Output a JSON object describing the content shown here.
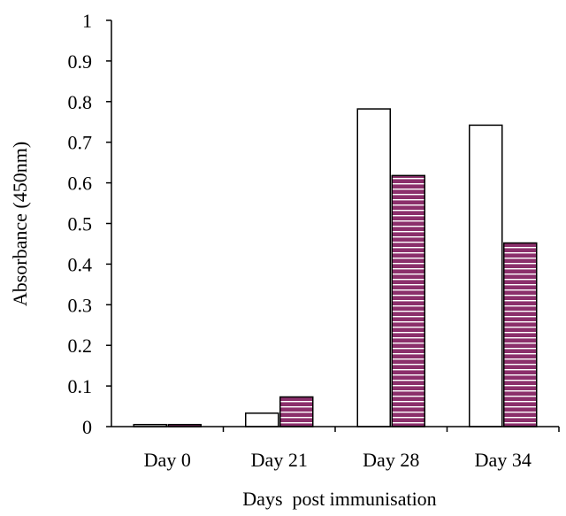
{
  "chart_data": {
    "type": "bar",
    "title": "",
    "xlabel": "Days  post immunisation",
    "ylabel": "Absorbance (450nm)",
    "categories": [
      "Day 0",
      "Day 21",
      "Day 28",
      "Day 34"
    ],
    "ylim": [
      0,
      1
    ],
    "yticks": [
      "0",
      "0.1",
      "0.2",
      "0.3",
      "0.4",
      "0.5",
      "0.6",
      "0.7",
      "0.8",
      "0.9",
      "1"
    ],
    "grid": false,
    "legend": "none",
    "series": [
      {
        "values": [
          0.005,
          0.033,
          0.782,
          0.742
        ],
        "fill": "#ffffff",
        "pattern": "none"
      },
      {
        "values": [
          0.005,
          0.073,
          0.618,
          0.452
        ],
        "fill": "#8b2f6b",
        "pattern": "horizontal-stripes"
      }
    ]
  }
}
